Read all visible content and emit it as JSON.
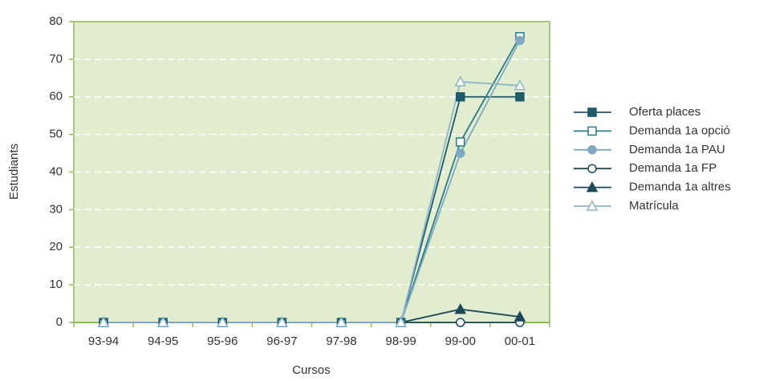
{
  "chart_data": {
    "type": "line",
    "categories": [
      "93-94",
      "94-95",
      "95-96",
      "96-97",
      "97-98",
      "98-99",
      "99-00",
      "00-01"
    ],
    "x_label": "Cursos",
    "y_label": "Estudiants",
    "ylim": [
      0,
      80
    ],
    "yticks": [
      0,
      10,
      20,
      30,
      40,
      50,
      60,
      70,
      80
    ],
    "grid": true,
    "legend": "right",
    "series": [
      {
        "name": "Oferta places",
        "color": "#1d5a6b",
        "marker": "square",
        "filled": true,
        "values": [
          0,
          0,
          0,
          0,
          0,
          0,
          60,
          60
        ]
      },
      {
        "name": "Demanda 1a opció",
        "color": "#287a8c",
        "marker": "square",
        "filled": false,
        "values": [
          0,
          0,
          0,
          0,
          0,
          0,
          48,
          76
        ]
      },
      {
        "name": "Demanda 1a PAU",
        "color": "#7fa9c2",
        "marker": "circle",
        "filled": true,
        "values": [
          0,
          0,
          0,
          0,
          0,
          0,
          45,
          75
        ]
      },
      {
        "name": "Demanda 1a FP",
        "color": "#1b4a5a",
        "marker": "circle",
        "filled": false,
        "values": [
          0,
          0,
          0,
          0,
          0,
          0,
          0,
          0
        ]
      },
      {
        "name": "Demanda 1a altres",
        "color": "#1b4a5a",
        "marker": "triangle",
        "filled": true,
        "values": [
          0,
          0,
          0,
          0,
          0,
          0,
          3.5,
          1.5
        ]
      },
      {
        "name": "Matrícula",
        "color": "#8db6cb",
        "marker": "triangle",
        "filled": false,
        "values": [
          0,
          0,
          0,
          0,
          0,
          0,
          64,
          63
        ]
      }
    ]
  }
}
